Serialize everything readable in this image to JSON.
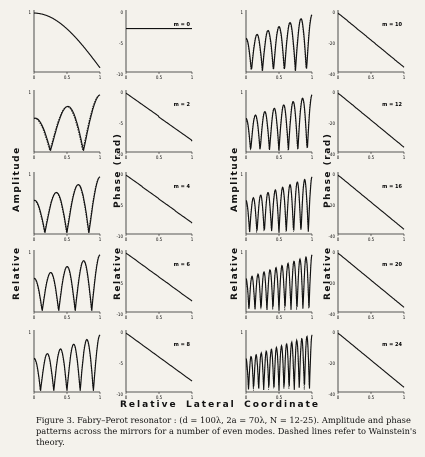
{
  "panels": {
    "mode_labels_left": [
      "m = 0",
      "m = 2",
      "m = 4",
      "m = 6",
      "m = 8"
    ],
    "mode_labels_right": [
      "m = 10",
      "m = 12",
      "m = 16",
      "m = 20",
      "m = 24"
    ],
    "tick_x": [
      "0",
      "0.5",
      "1"
    ],
    "tick_amp": [
      "1"
    ],
    "tick_phase_left": [
      "0",
      "-5",
      "-10"
    ],
    "tick_phase_right": [
      "0",
      "-20",
      "-40"
    ]
  },
  "axis_labels": {
    "amplitude": "Amplitude",
    "relative": "Relative",
    "phase": "Phase (rad)",
    "bottom_relative": "Relative",
    "bottom_lateral": "Lateral",
    "bottom_coordinate": "Coordinate"
  },
  "caption": {
    "label": "Figure 3.",
    "text": "Fabry–Perot resonator : (d = 100λ, 2a = 70λ, N = 12-25). Amplitude and phase patterns across the mirrors for a number of even modes. Dashed lines refer to Wainstein's theory."
  }
}
